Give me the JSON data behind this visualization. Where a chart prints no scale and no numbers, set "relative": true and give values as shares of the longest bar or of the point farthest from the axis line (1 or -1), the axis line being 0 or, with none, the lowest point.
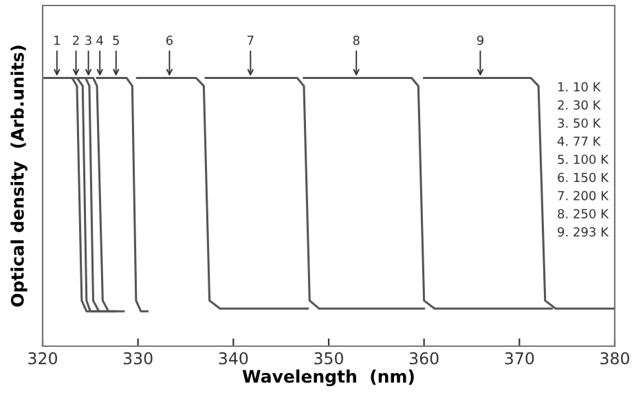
{
  "chart_data": {
    "type": "line",
    "relative": true,
    "xlabel": "Wavelength  (nm)",
    "ylabel": "Optical density  (Arb.units)",
    "xlim": [
      320,
      380
    ],
    "xticks": [
      320,
      330,
      340,
      350,
      360,
      370,
      380
    ],
    "grid": false,
    "legend": false,
    "marker": "none",
    "line_style": "solid",
    "series": [
      {
        "color": "#555555",
        "x": [
          320.0,
          323.1,
          323.6,
          324.1,
          324.6,
          325.7
        ],
        "values": [
          1,
          1,
          0.97,
          0.17,
          0.13,
          0.13
        ]
      },
      {
        "color": "#555555",
        "x": [
          322.7,
          323.6,
          324.2,
          324.6,
          325.0,
          326.6
        ],
        "values": [
          1,
          1,
          0.97,
          0.17,
          0.13,
          0.13
        ]
      },
      {
        "color": "#555555",
        "x": [
          323.8,
          324.5,
          324.9,
          325.3,
          325.9,
          327.6
        ],
        "values": [
          1,
          1,
          0.97,
          0.17,
          0.13,
          0.13
        ]
      },
      {
        "color": "#555555",
        "x": [
          324.6,
          325.3,
          325.7,
          326.3,
          326.9,
          328.5
        ],
        "values": [
          1,
          1,
          0.97,
          0.17,
          0.13,
          0.13
        ]
      },
      {
        "color": "#555555",
        "x": [
          325.7,
          328.8,
          329.4,
          329.8,
          330.3,
          331.0
        ],
        "values": [
          1,
          1,
          0.97,
          0.17,
          0.13,
          0.13
        ]
      },
      {
        "color": "#555555",
        "x": [
          329.9,
          336.1,
          336.9,
          337.5,
          338.6,
          347.8
        ],
        "values": [
          1,
          1,
          0.97,
          0.17,
          0.14,
          0.14
        ]
      },
      {
        "color": "#555555",
        "x": [
          337.1,
          346.7,
          347.4,
          348.0,
          349.0,
          360.0
        ],
        "values": [
          1,
          1,
          0.97,
          0.17,
          0.14,
          0.14
        ]
      },
      {
        "color": "#555555",
        "x": [
          347.4,
          358.7,
          359.4,
          360.0,
          361.1,
          373.4
        ],
        "values": [
          1,
          1,
          0.97,
          0.17,
          0.14,
          0.14
        ]
      },
      {
        "color": "#555555",
        "x": [
          360.0,
          371.2,
          372.0,
          372.7,
          373.8,
          380.0
        ],
        "values": [
          1,
          1,
          0.97,
          0.17,
          0.14,
          0.14
        ]
      }
    ],
    "annotations": [
      {
        "text": "1",
        "x": 321.5,
        "y": 1
      },
      {
        "text": "2",
        "x": 323.5,
        "y": 1
      },
      {
        "text": "3",
        "x": 324.8,
        "y": 1
      },
      {
        "text": "4",
        "x": 326.0,
        "y": 1
      },
      {
        "text": "5",
        "x": 327.7,
        "y": 1
      },
      {
        "text": "6",
        "x": 333.3,
        "y": 1
      },
      {
        "text": "7",
        "x": 341.8,
        "y": 1
      },
      {
        "text": "8",
        "x": 352.9,
        "y": 1
      },
      {
        "text": "9",
        "x": 365.9,
        "y": 1
      },
      "1. 10 K",
      "2. 30 K",
      "3. 50 K",
      "4. 77 K",
      "5. 100 K",
      "6. 150 K",
      "7. 200 K",
      "8. 250 K",
      "9. 293 K"
    ]
  }
}
